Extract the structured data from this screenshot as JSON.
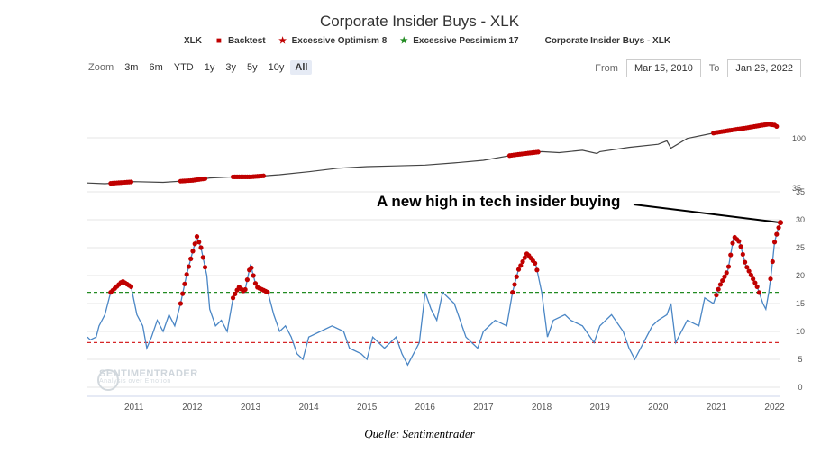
{
  "header": {
    "title": "Corporate Insider Buys - XLK"
  },
  "legend": [
    {
      "label": "XLK",
      "symbol": "—",
      "color": "#444444"
    },
    {
      "label": "Backtest",
      "symbol": "■",
      "color": "#c00000"
    },
    {
      "label": "Excessive Optimism 8",
      "symbol": "★",
      "color": "#c00000"
    },
    {
      "label": "Excessive Pessimism 17",
      "symbol": "★",
      "color": "#228b22"
    },
    {
      "label": "Corporate Insider Buys - XLK",
      "symbol": "—",
      "color": "#4a86c5"
    }
  ],
  "zoom": {
    "label": "Zoom",
    "buttons": [
      "3m",
      "6m",
      "YTD",
      "1y",
      "3y",
      "5y",
      "10y",
      "All"
    ],
    "active": "All"
  },
  "range": {
    "from_label": "From",
    "from_value": "Mar 15, 2010",
    "to_label": "To",
    "to_value": "Jan 26, 2022"
  },
  "annotation": "A new high in tech insider buying",
  "source": "Quelle: Sentimentrader",
  "watermark": {
    "name": "SENTIMENTRADER",
    "tagline": "Analysis over Emotion"
  },
  "colors": {
    "xlk": "#444444",
    "insider": "#4a86c5",
    "backtest": "#c00000",
    "optimism": "#d62728",
    "pessimism": "#228b22",
    "grid": "#e6e6e6"
  },
  "chart_data": {
    "type": "line",
    "x_range": [
      2010.2,
      2022.1
    ],
    "x_ticks": [
      2011,
      2012,
      2013,
      2014,
      2015,
      2016,
      2017,
      2018,
      2019,
      2020,
      2021,
      2022
    ],
    "upper": {
      "series_name": "XLK",
      "scale": "log",
      "ylim": [
        16,
        175
      ],
      "y_ticks": [
        100,
        35
      ],
      "values": [
        [
          2010.2,
          21
        ],
        [
          2010.5,
          20.5
        ],
        [
          2011.0,
          22
        ],
        [
          2011.5,
          21.5
        ],
        [
          2012.0,
          23
        ],
        [
          2012.3,
          25
        ],
        [
          2012.7,
          26
        ],
        [
          2013.0,
          26
        ],
        [
          2013.5,
          28
        ],
        [
          2014.0,
          31
        ],
        [
          2014.5,
          35
        ],
        [
          2015.0,
          37
        ],
        [
          2015.5,
          38
        ],
        [
          2016.0,
          39
        ],
        [
          2016.5,
          42
        ],
        [
          2017.0,
          46
        ],
        [
          2017.5,
          55
        ],
        [
          2018.0,
          62
        ],
        [
          2018.3,
          60
        ],
        [
          2018.7,
          65
        ],
        [
          2018.95,
          58
        ],
        [
          2019.0,
          62
        ],
        [
          2019.5,
          72
        ],
        [
          2020.0,
          80
        ],
        [
          2020.15,
          90
        ],
        [
          2020.22,
          70
        ],
        [
          2020.5,
          98
        ],
        [
          2021.0,
          120
        ],
        [
          2021.5,
          140
        ],
        [
          2021.9,
          160
        ],
        [
          2022.0,
          155
        ],
        [
          2022.05,
          145
        ]
      ],
      "backtest_ranges": [
        [
          2010.6,
          2010.95
        ],
        [
          2011.8,
          2012.25
        ],
        [
          2012.7,
          2013.25
        ],
        [
          2017.45,
          2017.95
        ],
        [
          2020.95,
          2022.05
        ]
      ]
    },
    "lower": {
      "series_name": "Corporate Insider Buys - XLK",
      "ylim": [
        0,
        35
      ],
      "y_ticks": [
        0,
        5,
        10,
        15,
        20,
        25,
        30,
        35
      ],
      "excessive_optimism": 8,
      "excessive_pessimism": 17,
      "values": [
        [
          2010.2,
          9
        ],
        [
          2010.25,
          8.5
        ],
        [
          2010.35,
          9
        ],
        [
          2010.4,
          11
        ],
        [
          2010.5,
          13
        ],
        [
          2010.6,
          17
        ],
        [
          2010.8,
          19
        ],
        [
          2010.95,
          18
        ],
        [
          2011.05,
          13
        ],
        [
          2011.15,
          11
        ],
        [
          2011.22,
          7
        ],
        [
          2011.3,
          9
        ],
        [
          2011.4,
          12
        ],
        [
          2011.5,
          10
        ],
        [
          2011.6,
          13
        ],
        [
          2011.7,
          11
        ],
        [
          2011.8,
          15
        ],
        [
          2011.9,
          20
        ],
        [
          2012.0,
          24
        ],
        [
          2012.08,
          27
        ],
        [
          2012.15,
          25
        ],
        [
          2012.25,
          20
        ],
        [
          2012.3,
          14
        ],
        [
          2012.4,
          11
        ],
        [
          2012.5,
          12
        ],
        [
          2012.6,
          10
        ],
        [
          2012.7,
          16
        ],
        [
          2012.8,
          18
        ],
        [
          2012.9,
          17
        ],
        [
          2013.0,
          22
        ],
        [
          2013.1,
          18
        ],
        [
          2013.3,
          17
        ],
        [
          2013.4,
          13
        ],
        [
          2013.5,
          10
        ],
        [
          2013.6,
          11
        ],
        [
          2013.7,
          9
        ],
        [
          2013.8,
          6
        ],
        [
          2013.9,
          5
        ],
        [
          2014.0,
          9
        ],
        [
          2014.2,
          10
        ],
        [
          2014.4,
          11
        ],
        [
          2014.6,
          10
        ],
        [
          2014.7,
          7
        ],
        [
          2014.9,
          6
        ],
        [
          2015.0,
          5
        ],
        [
          2015.1,
          9
        ],
        [
          2015.3,
          7
        ],
        [
          2015.5,
          9
        ],
        [
          2015.6,
          6
        ],
        [
          2015.7,
          4
        ],
        [
          2015.8,
          6
        ],
        [
          2015.9,
          8
        ],
        [
          2016.0,
          17
        ],
        [
          2016.1,
          14
        ],
        [
          2016.2,
          12
        ],
        [
          2016.3,
          17
        ],
        [
          2016.5,
          15
        ],
        [
          2016.6,
          12
        ],
        [
          2016.7,
          9
        ],
        [
          2016.9,
          7
        ],
        [
          2017.0,
          10
        ],
        [
          2017.2,
          12
        ],
        [
          2017.4,
          11
        ],
        [
          2017.5,
          17
        ],
        [
          2017.6,
          21
        ],
        [
          2017.75,
          24
        ],
        [
          2017.9,
          22
        ],
        [
          2018.0,
          17
        ],
        [
          2018.1,
          9
        ],
        [
          2018.2,
          12
        ],
        [
          2018.4,
          13
        ],
        [
          2018.5,
          12
        ],
        [
          2018.7,
          11
        ],
        [
          2018.9,
          8
        ],
        [
          2019.0,
          11
        ],
        [
          2019.2,
          13
        ],
        [
          2019.4,
          10
        ],
        [
          2019.5,
          7
        ],
        [
          2019.6,
          5
        ],
        [
          2019.75,
          8
        ],
        [
          2019.9,
          11
        ],
        [
          2020.0,
          12
        ],
        [
          2020.15,
          13
        ],
        [
          2020.22,
          15
        ],
        [
          2020.3,
          8
        ],
        [
          2020.5,
          12
        ],
        [
          2020.7,
          11
        ],
        [
          2020.8,
          16
        ],
        [
          2020.95,
          15
        ],
        [
          2021.05,
          18
        ],
        [
          2021.2,
          21
        ],
        [
          2021.3,
          27
        ],
        [
          2021.4,
          26
        ],
        [
          2021.5,
          22
        ],
        [
          2021.6,
          20
        ],
        [
          2021.7,
          18
        ],
        [
          2021.8,
          15
        ],
        [
          2021.85,
          14
        ],
        [
          2021.9,
          17
        ],
        [
          2021.95,
          21
        ],
        [
          2022.0,
          26
        ],
        [
          2022.05,
          28
        ],
        [
          2022.1,
          29.5
        ]
      ],
      "backtest_ranges": [
        [
          2010.6,
          2010.95
        ],
        [
          2011.8,
          2012.25
        ],
        [
          2012.7,
          2013.3
        ],
        [
          2017.5,
          2017.95
        ],
        [
          2021.0,
          2021.75
        ],
        [
          2021.93,
          2022.1
        ]
      ]
    }
  }
}
